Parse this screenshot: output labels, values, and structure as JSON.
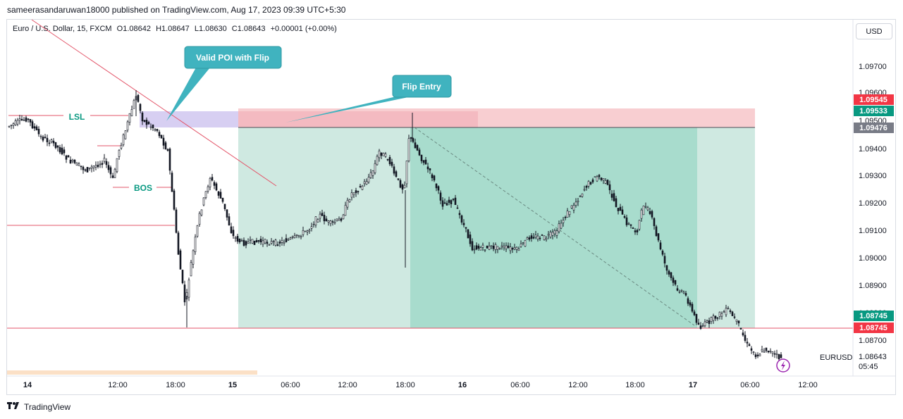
{
  "header": {
    "published": "sameerasandaruwan18000 published on TradingView.com, Aug 17, 2023 09:39 UTC+5:30"
  },
  "legend": {
    "instrument": "Euro / U.S. Dollar, 15, FXCM",
    "open": "O1.08642",
    "high": "H1.08647",
    "low": "L1.08630",
    "close": "C1.08643",
    "change": "+0.00001 (+0.00%)"
  },
  "currency_button": "USD",
  "footer": {
    "brand": "TradingView"
  },
  "colors": {
    "candle": "#131722",
    "red_line": "#f23645",
    "short_zone": "#f7c5c9",
    "poi_zone": "#c9bfee",
    "tp_zone_light": "#cfe9e1",
    "tp_zone_dark": "#a8dccd",
    "callout": "#40b3bf",
    "green_label": "#089981",
    "red_label": "#f23645",
    "gray_label": "#787b86"
  },
  "chart_data": {
    "type": "candlestick",
    "symbol": "EURUSD",
    "timeframe": "15",
    "x_ticks": [
      "14",
      "12:00",
      "18:00",
      "15",
      "06:00",
      "12:00",
      "18:00",
      "16",
      "06:00",
      "12:00",
      "18:00",
      "17",
      "06:00",
      "12:00"
    ],
    "y_ticks": [
      "1.09700",
      "1.09600",
      "1.09500",
      "1.09400",
      "1.09300",
      "1.09200",
      "1.09100",
      "1.09000",
      "1.08900",
      "1.08800",
      "1.08700"
    ],
    "ylim": [
      1.0858,
      1.0978
    ],
    "price_labels": [
      {
        "value": "1.09545",
        "color": "red"
      },
      {
        "value": "1.09533",
        "color": "green"
      },
      {
        "value": "1.09476",
        "color": "gray"
      },
      {
        "value": "1.08745",
        "color": "green"
      },
      {
        "value": "1.08745",
        "color": "red"
      },
      {
        "value": "1.08643",
        "color": "none"
      }
    ],
    "countdown": "05:45",
    "symbol_label": "EURUSD",
    "annotations": {
      "lsl": "LSL",
      "bos": "BOS",
      "callout_poi": "Valid POI with Flip",
      "callout_entry": "Flip Entry"
    },
    "levels": {
      "zone_top": 1.09545,
      "zone_entry": 1.09476,
      "take_profit": 1.08745,
      "red_level": 1.09115
    }
  }
}
